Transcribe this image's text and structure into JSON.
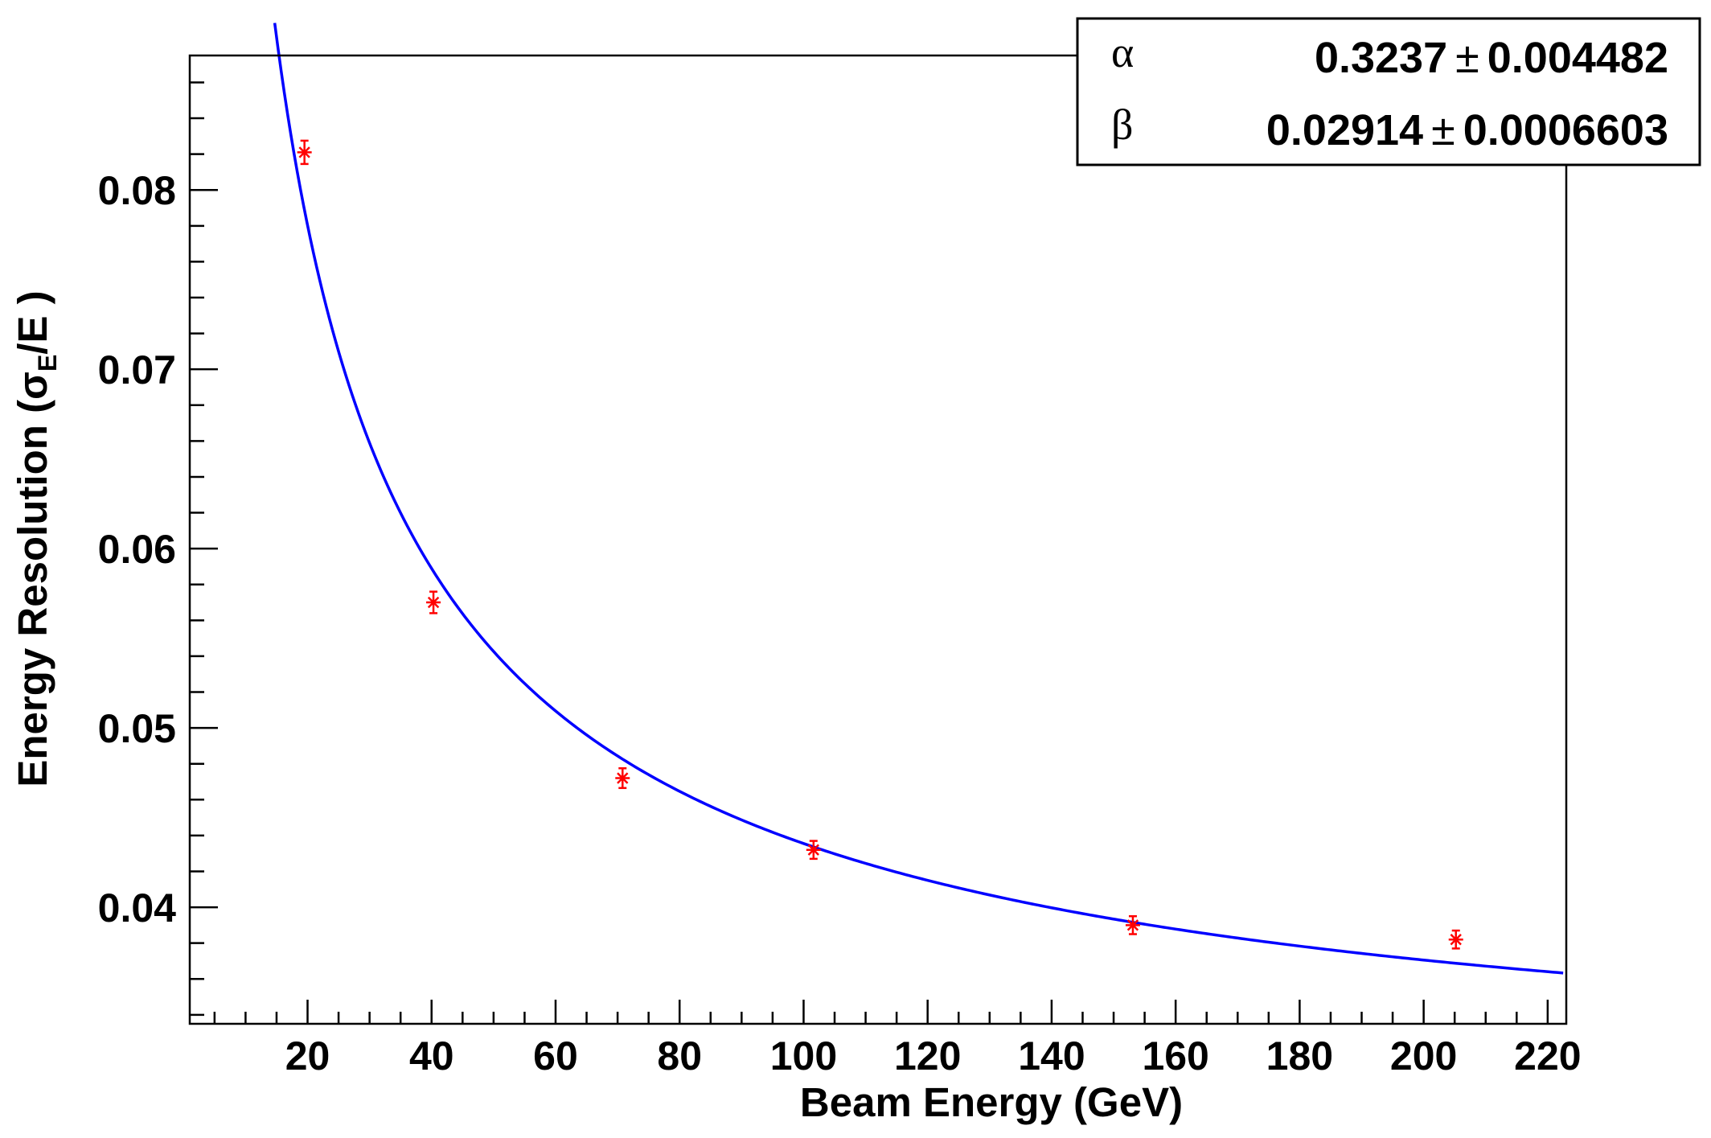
{
  "chart_data": {
    "type": "scatter",
    "xlabel": "Beam Energy (GeV)",
    "ylabel": {
      "prefix": "Energy Resolution (",
      "sigma": "σ",
      "sub": "E",
      "suffix": "/E )"
    },
    "xlim": [
      1,
      223
    ],
    "ylim": [
      0.0335,
      0.0875
    ],
    "x_ticks": [
      20,
      40,
      60,
      80,
      100,
      120,
      140,
      160,
      180,
      200,
      220
    ],
    "y_ticks": [
      0.04,
      0.05,
      0.06,
      0.07,
      0.08
    ],
    "x_tick_labels": [
      "20",
      "40",
      "60",
      "80",
      "100",
      "120",
      "140",
      "160",
      "180",
      "200",
      "220"
    ],
    "y_tick_labels": [
      "0.04",
      "0.05",
      "0.06",
      "0.07",
      "0.08"
    ],
    "grid": false,
    "series": [
      {
        "kind": "points",
        "color": "#ff0000",
        "marker": "star",
        "x": [
          19.5,
          40.3,
          70.8,
          101.6,
          153.1,
          205.2
        ],
        "y": [
          0.0821,
          0.057,
          0.0472,
          0.0432,
          0.039,
          0.0382
        ],
        "yerr": [
          0.00065,
          0.0006,
          0.00055,
          0.0005,
          0.0005,
          0.0005
        ]
      },
      {
        "kind": "fit",
        "color": "#0000ff",
        "function": "sqrt((alpha/sqrt(E))^2 + beta^2)",
        "alpha": 0.3237,
        "beta": 0.02914,
        "x_range": [
          14.7,
          222.5
        ]
      }
    ],
    "legend": {
      "position": "top-right",
      "rows": [
        {
          "symbol": "α",
          "value": "0.3237",
          "pm": "±",
          "error": "0.004482"
        },
        {
          "symbol": "β",
          "value": "0.02914",
          "pm": "±",
          "error": "0.0006603"
        }
      ]
    }
  }
}
